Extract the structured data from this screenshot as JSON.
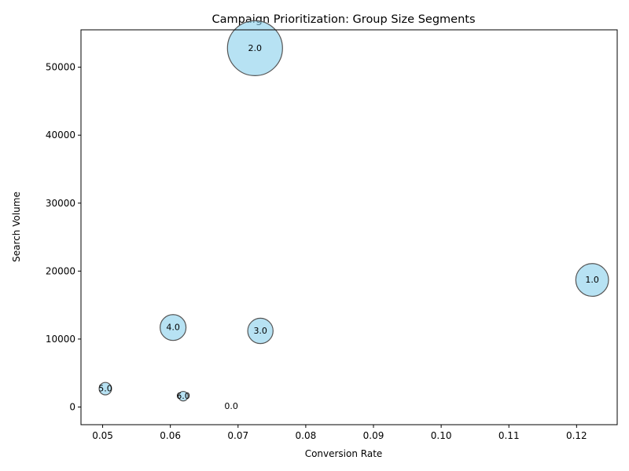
{
  "chart_data": {
    "type": "scatter",
    "title": "Campaign Prioritization: Group Size Segments",
    "xlabel": "Conversion Rate",
    "ylabel": "Search Volume",
    "xlim": [
      0.0468,
      0.126
    ],
    "ylim": [
      -2600,
      55500
    ],
    "xticks": [
      0.05,
      0.06,
      0.07,
      0.08,
      0.09,
      0.1,
      0.11,
      0.12
    ],
    "xtick_labels": [
      "0.05",
      "0.06",
      "0.07",
      "0.08",
      "0.09",
      "0.10",
      "0.11",
      "0.12"
    ],
    "yticks": [
      0,
      10000,
      20000,
      30000,
      40000,
      50000
    ],
    "ytick_labels": [
      "0",
      "10000",
      "20000",
      "30000",
      "40000",
      "50000"
    ],
    "bubble_color": "#87ceeb",
    "bubble_edge_color": "#555555",
    "grid": false,
    "points": [
      {
        "label": "0.0",
        "x": 0.069,
        "y": 130,
        "size": 0
      },
      {
        "label": "1.0",
        "x": 0.1223,
        "y": 18700,
        "size": 18700
      },
      {
        "label": "2.0",
        "x": 0.0725,
        "y": 52800,
        "size": 52800
      },
      {
        "label": "3.0",
        "x": 0.0733,
        "y": 11200,
        "size": 11200
      },
      {
        "label": "4.0",
        "x": 0.0604,
        "y": 11700,
        "size": 11700
      },
      {
        "label": "5.0",
        "x": 0.0504,
        "y": 2700,
        "size": 2700
      },
      {
        "label": "6.0",
        "x": 0.0619,
        "y": 1600,
        "size": 1600
      }
    ]
  }
}
